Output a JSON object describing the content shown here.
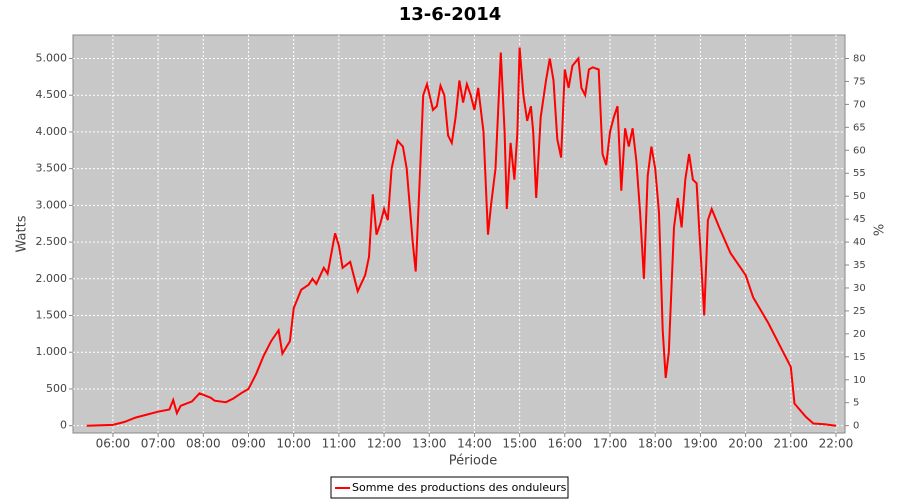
{
  "chart_data": {
    "type": "line",
    "title": "13-6-2014",
    "xlabel": "Période",
    "ylabel": "Watts",
    "y2label": "%",
    "x": [
      "05:25",
      "06:00",
      "06:15",
      "06:30",
      "06:45",
      "07:00",
      "07:15",
      "07:20",
      "07:25",
      "07:30",
      "07:45",
      "07:55",
      "08:10",
      "08:15",
      "08:30",
      "08:40",
      "08:50",
      "09:00",
      "09:10",
      "09:20",
      "09:30",
      "09:40",
      "09:45",
      "09:55",
      "10:00",
      "10:10",
      "10:20",
      "10:25",
      "10:30",
      "10:40",
      "10:45",
      "10:55",
      "11:00",
      "11:05",
      "11:15",
      "11:25",
      "11:35",
      "11:40",
      "11:45",
      "11:50",
      "11:55",
      "12:00",
      "12:05",
      "12:10",
      "12:18",
      "12:25",
      "12:30",
      "12:38",
      "12:42",
      "12:48",
      "12:52",
      "12:57",
      "13:05",
      "13:10",
      "13:15",
      "13:20",
      "13:25",
      "13:30",
      "13:35",
      "13:40",
      "13:45",
      "13:50",
      "13:55",
      "14:00",
      "14:05",
      "14:12",
      "14:18",
      "14:22",
      "14:28",
      "14:35",
      "14:40",
      "14:43",
      "14:48",
      "14:53",
      "14:57",
      "15:00",
      "15:05",
      "15:10",
      "15:15",
      "15:18",
      "15:22",
      "15:28",
      "15:35",
      "15:40",
      "15:45",
      "15:50",
      "15:55",
      "16:00",
      "16:05",
      "16:10",
      "16:18",
      "16:22",
      "16:27",
      "16:32",
      "16:37",
      "16:45",
      "16:50",
      "16:55",
      "17:00",
      "17:05",
      "17:10",
      "17:15",
      "17:20",
      "17:25",
      "17:30",
      "17:35",
      "17:40",
      "17:45",
      "17:50",
      "17:55",
      "18:00",
      "18:05",
      "18:10",
      "18:14",
      "18:18",
      "18:25",
      "18:30",
      "18:35",
      "18:40",
      "18:45",
      "18:50",
      "18:55",
      "19:00",
      "19:05",
      "19:10",
      "19:15",
      "19:25",
      "19:40",
      "20:00",
      "20:10",
      "20:30",
      "20:50",
      "21:00",
      "21:05",
      "21:20",
      "21:30",
      "21:45",
      "21:55",
      "22:00"
    ],
    "series": [
      {
        "name": "Somme des productions des onduleurs",
        "color": "#ff0000",
        "values": [
          0,
          10,
          50,
          110,
          150,
          190,
          220,
          350,
          170,
          270,
          330,
          440,
          380,
          340,
          320,
          370,
          440,
          500,
          700,
          950,
          1150,
          1300,
          980,
          1150,
          1600,
          1850,
          1920,
          2000,
          1930,
          2150,
          2070,
          2620,
          2450,
          2150,
          2230,
          1830,
          2050,
          2300,
          3150,
          2600,
          2750,
          2950,
          2800,
          3500,
          3880,
          3800,
          3500,
          2500,
          2100,
          3500,
          4500,
          4650,
          4300,
          4350,
          4630,
          4500,
          3950,
          3850,
          4200,
          4700,
          4400,
          4650,
          4500,
          4300,
          4600,
          4000,
          2600,
          3000,
          3500,
          5080,
          4000,
          2950,
          3850,
          3350,
          4000,
          5150,
          4500,
          4150,
          4350,
          4000,
          3100,
          4200,
          4700,
          5000,
          4700,
          3900,
          3650,
          4850,
          4600,
          4900,
          5000,
          4600,
          4500,
          4850,
          4880,
          4850,
          3700,
          3550,
          4000,
          4200,
          4350,
          3200,
          4050,
          3800,
          4050,
          3600,
          2900,
          2000,
          3400,
          3800,
          3500,
          2900,
          1300,
          650,
          1000,
          2700,
          3100,
          2700,
          3350,
          3700,
          3350,
          3300,
          2400,
          1500,
          2800,
          2950,
          2700,
          2350,
          2050,
          1750,
          1400,
          1000,
          800,
          300,
          120,
          30,
          20,
          5,
          0
        ]
      }
    ],
    "xlim": [
      "05:07",
      "22:12"
    ],
    "xticks": [
      "06:00",
      "07:00",
      "08:00",
      "09:00",
      "10:00",
      "11:00",
      "12:00",
      "13:00",
      "14:00",
      "15:00",
      "16:00",
      "17:00",
      "18:00",
      "19:00",
      "20:00",
      "21:00",
      "22:00"
    ],
    "ylim": [
      -100,
      5320
    ],
    "yticks": [
      0,
      500,
      {
        "value": 1000,
        "label": "1.000"
      },
      {
        "value": 1500,
        "label": "1.500"
      },
      {
        "value": 2000,
        "label": "2.000"
      },
      {
        "value": 2500,
        "label": "2.500"
      },
      {
        "value": 3000,
        "label": "3.000"
      },
      {
        "value": 3500,
        "label": "3.500"
      },
      {
        "value": 4000,
        "label": "4.000"
      },
      {
        "value": 4500,
        "label": "4.500"
      },
      {
        "value": 5000,
        "label": "5.000"
      }
    ],
    "y2lim": [
      -1.6,
      85.12
    ],
    "y2ticks": [
      0,
      5,
      10,
      15,
      20,
      25,
      30,
      35,
      40,
      45,
      50,
      55,
      60,
      65,
      70,
      75,
      80
    ],
    "grid": true,
    "background": "#c8c8c8",
    "legend": "bottom"
  }
}
